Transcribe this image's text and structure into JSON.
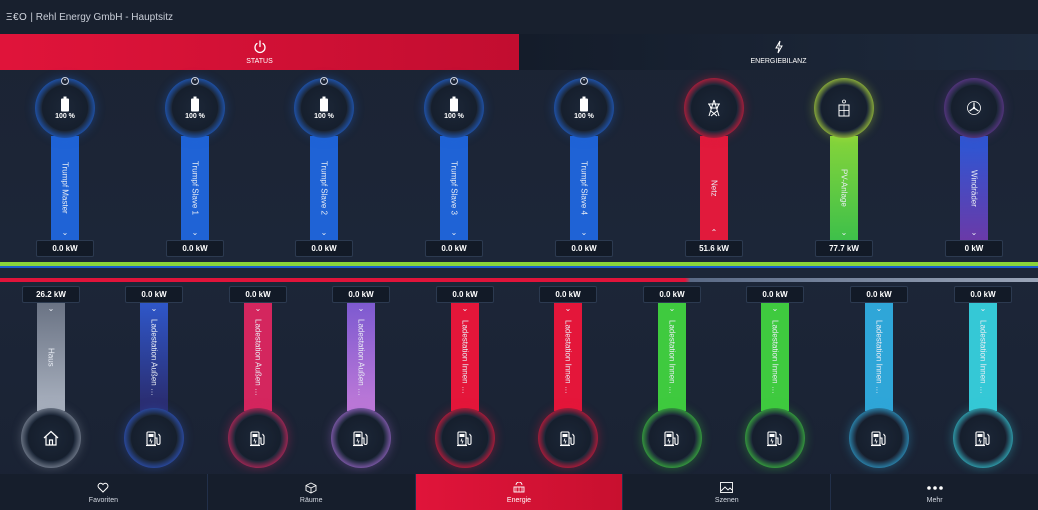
{
  "app": {
    "logo": "Ξ€O",
    "title": "| Rehl Energy GmbH - Hauptsitz"
  },
  "tabs": [
    {
      "label": "STATUS",
      "icon": "power-icon",
      "active": true
    },
    {
      "label": "ENERGIEBILANZ",
      "icon": "lightning-icon",
      "active": false
    }
  ],
  "producers": [
    {
      "label": "Trumpf Master",
      "value": "0.0 kW",
      "percent": "100 %",
      "icon": "battery-icon",
      "color": "#1f63d6"
    },
    {
      "label": "Trumpf Slave 1",
      "value": "0.0 kW",
      "percent": "100 %",
      "icon": "battery-icon",
      "color": "#1f63d6"
    },
    {
      "label": "Trumpf Slave 2",
      "value": "0.0 kW",
      "percent": "100 %",
      "icon": "battery-icon",
      "color": "#1f63d6"
    },
    {
      "label": "Trumpf Slave 3",
      "value": "0.0 kW",
      "percent": "100 %",
      "icon": "battery-icon",
      "color": "#1f63d6"
    },
    {
      "label": "Trumpf Slave 4",
      "value": "0.0 kW",
      "percent": "100 %",
      "icon": "battery-icon",
      "color": "#1f63d6"
    },
    {
      "label": "Netz",
      "value": "51.6 kW",
      "percent": "",
      "icon": "power-tower-icon",
      "color": "#e11a3c"
    },
    {
      "label": "PV-Anlage",
      "value": "77.7 kW",
      "percent": "",
      "icon": "solar-panel-icon",
      "color": "#7cd43a"
    },
    {
      "label": "Windräder",
      "value": "0 kW",
      "percent": "",
      "icon": "wind-turbine-icon",
      "color": "#4a3fae"
    }
  ],
  "consumers": [
    {
      "label": "Haus",
      "value": "26.2 kW",
      "icon": "house-icon",
      "color": "#8a93a3"
    },
    {
      "label": "Ladestation Außen …",
      "value": "0.0 kW",
      "icon": "charging-station-icon",
      "color": "#2f57c9"
    },
    {
      "label": "Ladestation Außen …",
      "value": "0.0 kW",
      "icon": "charging-station-icon",
      "color": "#d4265e"
    },
    {
      "label": "Ladestation Außen …",
      "value": "0.0 kW",
      "icon": "charging-station-icon",
      "color": "#a06ad0"
    },
    {
      "label": "Ladestation Innen …",
      "value": "0.0 kW",
      "icon": "charging-station-icon",
      "color": "#e4163a"
    },
    {
      "label": "Ladestation Innen …",
      "value": "0.0 kW",
      "icon": "charging-station-icon",
      "color": "#e4163a"
    },
    {
      "label": "Ladestation Innen …",
      "value": "0.0 kW",
      "icon": "charging-station-icon",
      "color": "#3fca3f"
    },
    {
      "label": "Ladestation Innen …",
      "value": "0.0 kW",
      "icon": "charging-station-icon",
      "color": "#3fca3f"
    },
    {
      "label": "Ladestation Innen …",
      "value": "0.0 kW",
      "icon": "charging-station-icon",
      "color": "#2fa6d8"
    },
    {
      "label": "Ladestation Innen …",
      "value": "0.0 kW",
      "icon": "charging-station-icon",
      "color": "#35c8d6"
    }
  ],
  "nav": [
    {
      "label": "Favoriten",
      "icon": "heart-icon",
      "active": false
    },
    {
      "label": "Räume",
      "icon": "cube-icon",
      "active": false
    },
    {
      "label": "Energie",
      "icon": "energy-icon",
      "active": true
    },
    {
      "label": "Szenen",
      "icon": "image-icon",
      "active": false
    },
    {
      "label": "Mehr",
      "icon": "more-icon",
      "active": false
    }
  ]
}
